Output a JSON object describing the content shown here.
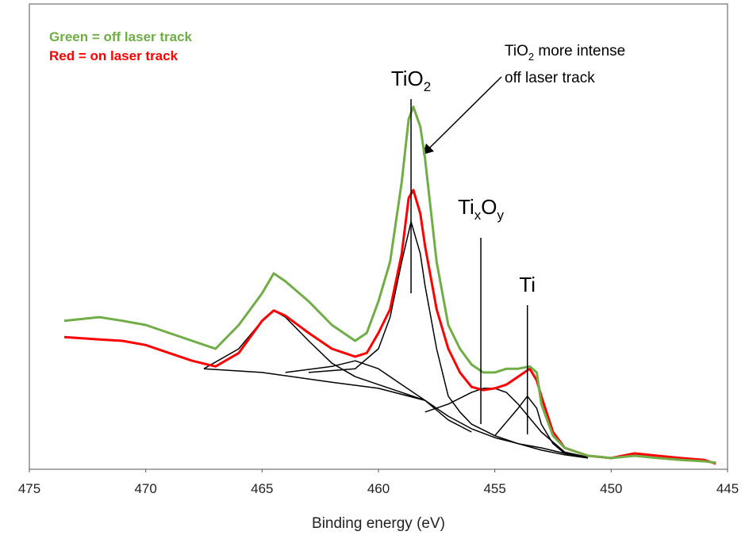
{
  "chart_data": {
    "type": "line",
    "xlabel": "Binding energy (eV)",
    "xlim": [
      475,
      445
    ],
    "xticks": [
      475,
      470,
      465,
      460,
      455,
      450,
      445
    ],
    "ylim": [
      0,
      100
    ],
    "legend": [
      {
        "text": "Green = off laser track",
        "color": "#70ad47"
      },
      {
        "text": "Red = on laser track",
        "color": "#ff0000"
      }
    ],
    "x": [
      473.5,
      472,
      471,
      470,
      469,
      468,
      467,
      466,
      465,
      464.5,
      464,
      463,
      462,
      461,
      460.5,
      460,
      459.5,
      459,
      458.7,
      458.5,
      458.2,
      458,
      457.5,
      457,
      456.5,
      456,
      455.5,
      455,
      454.5,
      454,
      453.5,
      453.2,
      453,
      452.5,
      452,
      451,
      450,
      449,
      448,
      447,
      446,
      445.5
    ],
    "series": [
      {
        "color": "#70ad47",
        "width": 3,
        "values": [
          31.9,
          32.7,
          31.9,
          31.0,
          29.3,
          27.6,
          25.9,
          31.0,
          37.8,
          42.1,
          40.4,
          36.1,
          31.0,
          27.6,
          29.3,
          36.1,
          44.6,
          61.7,
          75.3,
          77.9,
          73.6,
          66.8,
          44.6,
          31.0,
          25.9,
          22.5,
          20.8,
          20.8,
          21.6,
          21.6,
          22.1,
          20.8,
          14.0,
          7.2,
          4.6,
          2.9,
          2.4,
          2.9,
          2.4,
          2.0,
          1.7,
          1.4
        ]
      },
      {
        "color": "#ff0000",
        "width": 3,
        "values": [
          28.4,
          27.9,
          27.6,
          26.7,
          25.0,
          23.3,
          22.1,
          25.0,
          31.9,
          34.1,
          33.0,
          29.3,
          25.9,
          24.2,
          25.0,
          29.3,
          34.4,
          46.3,
          58.3,
          60.0,
          54.9,
          48.0,
          34.4,
          25.9,
          20.8,
          17.7,
          17.0,
          17.4,
          18.2,
          19.9,
          21.6,
          19.1,
          15.7,
          8.0,
          4.6,
          2.9,
          2.4,
          3.4,
          2.9,
          2.4,
          2.0,
          1.2
        ]
      },
      {
        "color": "#000000",
        "width": 1.5,
        "x": [
          467.5,
          465,
          462,
          460,
          458,
          457,
          456,
          455,
          454,
          453,
          452,
          451
        ],
        "values": [
          21.6,
          20.8,
          18.7,
          17.4,
          14.8,
          11.4,
          8.7,
          6.8,
          5.5,
          4.6,
          3.4,
          2.6
        ]
      },
      {
        "color": "#000000",
        "width": 1.5,
        "x": [
          467.5,
          466,
          465,
          464.5,
          464,
          463,
          462,
          461,
          460,
          459,
          458
        ],
        "values": [
          21.6,
          25.9,
          31.9,
          34.1,
          32.7,
          27.6,
          22.8,
          19.9,
          18.2,
          16.5,
          14.8
        ]
      },
      {
        "color": "#000000",
        "width": 1.5,
        "x": [
          463,
          461,
          460,
          459.5,
          459,
          458.6,
          458.2,
          458,
          457.5,
          457,
          456.5,
          456,
          455,
          454,
          453,
          452,
          451
        ],
        "values": [
          20.8,
          21.6,
          25.9,
          32.7,
          44.6,
          53.2,
          46.3,
          39.5,
          25.9,
          15.7,
          12.3,
          9.7,
          7.2,
          5.5,
          4.1,
          3.1,
          2.4
        ]
      },
      {
        "color": "#000000",
        "width": 1.5,
        "x": [
          464,
          462,
          461,
          460,
          459,
          458,
          457,
          456
        ],
        "values": [
          20.8,
          22.1,
          23.3,
          21.6,
          18.2,
          14.8,
          10.6,
          8.0
        ]
      },
      {
        "color": "#000000",
        "width": 1.5,
        "x": [
          458,
          457,
          456,
          455.5,
          455,
          454.5,
          454,
          453,
          452,
          451
        ],
        "values": [
          12.3,
          14.0,
          16.5,
          17.4,
          17.4,
          16.5,
          14.0,
          8.0,
          3.7,
          2.6
        ]
      },
      {
        "color": "#000000",
        "width": 1.5,
        "x": [
          455,
          454,
          453.6,
          453.2,
          453,
          452.5,
          452,
          451
        ],
        "values": [
          7.2,
          13.1,
          15.7,
          13.1,
          9.7,
          5.5,
          3.4,
          2.6
        ]
      }
    ],
    "annotations": [
      {
        "x": 458.6,
        "parts": [
          "TiO",
          "2"
        ]
      },
      {
        "x": 455.6,
        "parts": [
          "Ti",
          "x",
          "O",
          "y"
        ]
      },
      {
        "x": 453.6,
        "parts": [
          "Ti"
        ]
      }
    ],
    "note": {
      "line1": [
        "TiO",
        "2",
        " more intense"
      ],
      "line2": "off laser track"
    }
  }
}
